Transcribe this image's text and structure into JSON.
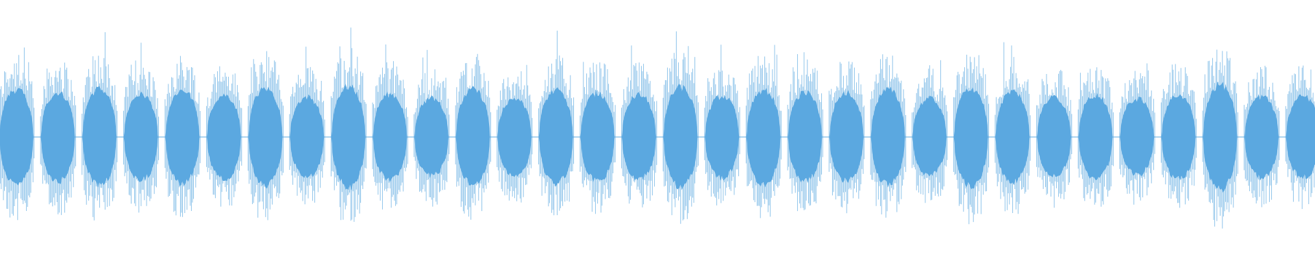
{
  "waveform": {
    "color": "#5ba8e0"
  }
}
